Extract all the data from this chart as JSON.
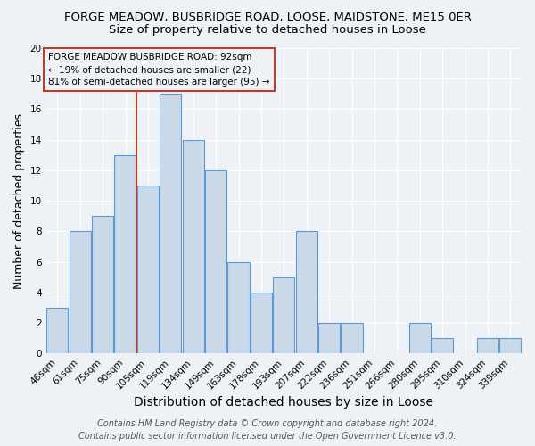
{
  "title": "FORGE MEADOW, BUSBRIDGE ROAD, LOOSE, MAIDSTONE, ME15 0ER",
  "subtitle": "Size of property relative to detached houses in Loose",
  "xlabel": "Distribution of detached houses by size in Loose",
  "ylabel": "Number of detached properties",
  "categories": [
    "46sqm",
    "61sqm",
    "75sqm",
    "90sqm",
    "105sqm",
    "119sqm",
    "134sqm",
    "149sqm",
    "163sqm",
    "178sqm",
    "193sqm",
    "207sqm",
    "222sqm",
    "236sqm",
    "251sqm",
    "266sqm",
    "280sqm",
    "295sqm",
    "310sqm",
    "324sqm",
    "339sqm"
  ],
  "values": [
    3,
    8,
    9,
    13,
    11,
    17,
    14,
    12,
    6,
    4,
    5,
    8,
    2,
    2,
    0,
    0,
    2,
    1,
    0,
    1,
    1
  ],
  "bar_color": "#c9d9e8",
  "bar_edgecolor": "#5b9bd5",
  "vline_after_index": 3,
  "vline_color": "#c0392b",
  "ylim": [
    0,
    20
  ],
  "yticks": [
    0,
    2,
    4,
    6,
    8,
    10,
    12,
    14,
    16,
    18,
    20
  ],
  "annotation_text": "FORGE MEADOW BUSBRIDGE ROAD: 92sqm\n← 19% of detached houses are smaller (22)\n81% of semi-detached houses are larger (95) →",
  "annotation_box_edgecolor": "#c0392b",
  "footer_line1": "Contains HM Land Registry data © Crown copyright and database right 2024.",
  "footer_line2": "Contains public sector information licensed under the Open Government Licence v3.0.",
  "background_color": "#eef2f7",
  "grid_color": "#ffffff",
  "title_fontsize": 9.5,
  "subtitle_fontsize": 9.5,
  "xlabel_fontsize": 10,
  "ylabel_fontsize": 9,
  "tick_fontsize": 7.5,
  "annotation_fontsize": 7.5,
  "footer_fontsize": 7
}
